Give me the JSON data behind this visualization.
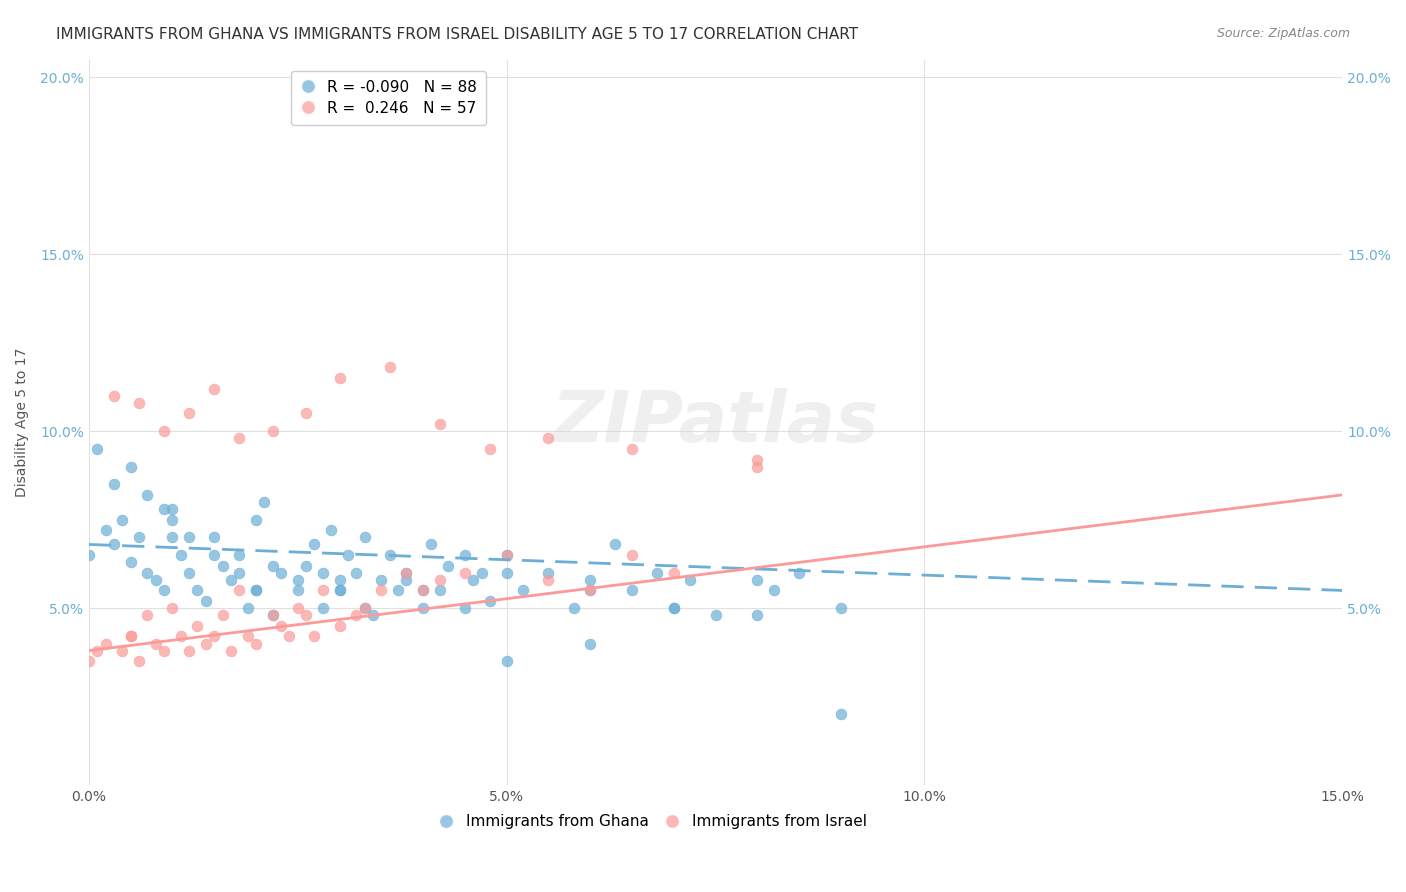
{
  "title": "IMMIGRANTS FROM GHANA VS IMMIGRANTS FROM ISRAEL DISABILITY AGE 5 TO 17 CORRELATION CHART",
  "source_text": "Source: ZipAtlas.com",
  "xlabel": "",
  "ylabel": "Disability Age 5 to 17",
  "xlim": [
    0.0,
    0.15
  ],
  "ylim": [
    0.0,
    0.205
  ],
  "xticks": [
    0.0,
    0.05,
    0.1,
    0.15
  ],
  "xtick_labels": [
    "0.0%",
    "5.0%",
    "10.0%",
    "15.0%"
  ],
  "yticks": [
    0.05,
    0.1,
    0.15,
    0.2
  ],
  "ytick_labels": [
    "5.0%",
    "10.0%",
    "15.0%",
    "20.0%"
  ],
  "ghana_color": "#6baed6",
  "israel_color": "#fb9a99",
  "ghana_R": -0.09,
  "ghana_N": 88,
  "israel_R": 0.246,
  "israel_N": 57,
  "ghana_scatter_x": [
    0.0,
    0.002,
    0.003,
    0.004,
    0.005,
    0.006,
    0.007,
    0.008,
    0.009,
    0.01,
    0.011,
    0.012,
    0.013,
    0.014,
    0.015,
    0.016,
    0.017,
    0.018,
    0.019,
    0.02,
    0.021,
    0.022,
    0.023,
    0.025,
    0.026,
    0.027,
    0.028,
    0.029,
    0.03,
    0.031,
    0.032,
    0.033,
    0.034,
    0.035,
    0.036,
    0.037,
    0.038,
    0.04,
    0.041,
    0.042,
    0.043,
    0.045,
    0.046,
    0.047,
    0.048,
    0.05,
    0.052,
    0.055,
    0.058,
    0.06,
    0.063,
    0.065,
    0.068,
    0.07,
    0.072,
    0.075,
    0.08,
    0.082,
    0.085,
    0.09,
    0.001,
    0.003,
    0.005,
    0.007,
    0.009,
    0.01,
    0.012,
    0.015,
    0.018,
    0.02,
    0.022,
    0.025,
    0.028,
    0.03,
    0.033,
    0.038,
    0.045,
    0.05,
    0.06,
    0.07,
    0.08,
    0.09,
    0.01,
    0.02,
    0.03,
    0.04,
    0.05,
    0.06
  ],
  "ghana_scatter_y": [
    0.065,
    0.072,
    0.068,
    0.075,
    0.063,
    0.07,
    0.06,
    0.058,
    0.055,
    0.078,
    0.065,
    0.06,
    0.055,
    0.052,
    0.07,
    0.062,
    0.058,
    0.065,
    0.05,
    0.075,
    0.08,
    0.048,
    0.06,
    0.055,
    0.062,
    0.068,
    0.05,
    0.072,
    0.055,
    0.065,
    0.06,
    0.07,
    0.048,
    0.058,
    0.065,
    0.055,
    0.06,
    0.05,
    0.068,
    0.055,
    0.062,
    0.05,
    0.058,
    0.06,
    0.052,
    0.065,
    0.055,
    0.06,
    0.05,
    0.058,
    0.068,
    0.055,
    0.06,
    0.05,
    0.058,
    0.048,
    0.058,
    0.055,
    0.06,
    0.05,
    0.095,
    0.085,
    0.09,
    0.082,
    0.078,
    0.075,
    0.07,
    0.065,
    0.06,
    0.055,
    0.062,
    0.058,
    0.06,
    0.055,
    0.05,
    0.058,
    0.065,
    0.06,
    0.055,
    0.05,
    0.048,
    0.02,
    0.07,
    0.055,
    0.058,
    0.055,
    0.035,
    0.04
  ],
  "israel_scatter_x": [
    0.0,
    0.002,
    0.004,
    0.005,
    0.006,
    0.007,
    0.008,
    0.009,
    0.01,
    0.011,
    0.012,
    0.013,
    0.014,
    0.015,
    0.016,
    0.017,
    0.018,
    0.019,
    0.02,
    0.022,
    0.023,
    0.024,
    0.025,
    0.026,
    0.027,
    0.028,
    0.03,
    0.032,
    0.033,
    0.035,
    0.038,
    0.04,
    0.042,
    0.045,
    0.05,
    0.055,
    0.06,
    0.065,
    0.07,
    0.08,
    0.003,
    0.006,
    0.009,
    0.012,
    0.015,
    0.018,
    0.022,
    0.026,
    0.03,
    0.036,
    0.042,
    0.048,
    0.055,
    0.065,
    0.08,
    0.001,
    0.005
  ],
  "israel_scatter_y": [
    0.035,
    0.04,
    0.038,
    0.042,
    0.035,
    0.048,
    0.04,
    0.038,
    0.05,
    0.042,
    0.038,
    0.045,
    0.04,
    0.042,
    0.048,
    0.038,
    0.055,
    0.042,
    0.04,
    0.048,
    0.045,
    0.042,
    0.05,
    0.048,
    0.042,
    0.055,
    0.045,
    0.048,
    0.05,
    0.055,
    0.06,
    0.055,
    0.058,
    0.06,
    0.065,
    0.058,
    0.055,
    0.065,
    0.06,
    0.092,
    0.11,
    0.108,
    0.1,
    0.105,
    0.112,
    0.098,
    0.1,
    0.105,
    0.115,
    0.118,
    0.102,
    0.095,
    0.098,
    0.095,
    0.09,
    0.038,
    0.042
  ],
  "ghana_line_x": [
    0.0,
    0.15
  ],
  "ghana_line_y_start": 0.068,
  "ghana_line_y_end": 0.055,
  "israel_line_x": [
    0.0,
    0.15
  ],
  "israel_line_y_start": 0.038,
  "israel_line_y_end": 0.082,
  "watermark": "ZIPatlas",
  "background_color": "#ffffff",
  "grid_color": "#e0e0e0",
  "title_fontsize": 11,
  "axis_label_fontsize": 10,
  "tick_fontsize": 10,
  "legend_fontsize": 11
}
